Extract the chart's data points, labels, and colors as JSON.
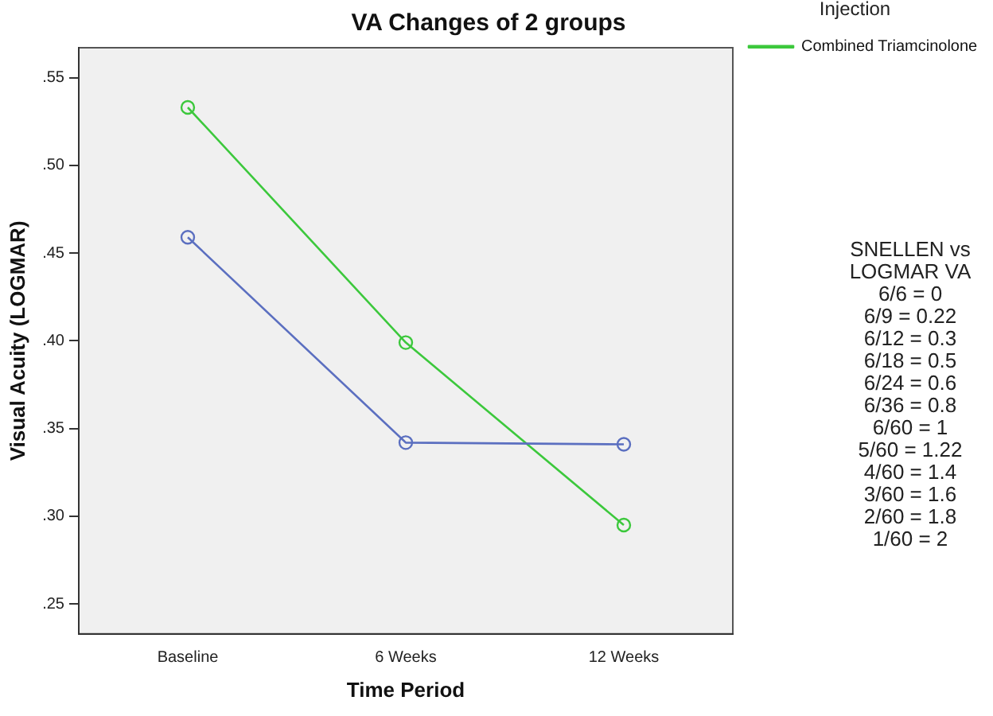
{
  "chart_data": {
    "type": "line",
    "title": "VA Changes of 2 groups",
    "xlabel": "Time Period",
    "ylabel": "Visual Acuity (LOGMAR)",
    "legend_title": "Injection",
    "categories": [
      "Baseline",
      "6 Weeks",
      "12 Weeks"
    ],
    "series": [
      {
        "color": "#5b6fc0",
        "values": [
          0.459,
          0.342,
          0.341
        ]
      },
      {
        "name": "Combined Triamcinolone",
        "color": "#3cc83c",
        "values": [
          0.533,
          0.399,
          0.295
        ]
      }
    ],
    "ylim": [
      0.233,
      0.567
    ],
    "yticks": [
      {
        "value": 0.25,
        "label": ".25"
      },
      {
        "value": 0.3,
        "label": ".30"
      },
      {
        "value": 0.35,
        "label": ".35"
      },
      {
        "value": 0.4,
        "label": ".40"
      },
      {
        "value": 0.45,
        "label": ".45"
      },
      {
        "value": 0.5,
        "label": ".50"
      },
      {
        "value": 0.55,
        "label": ".55"
      }
    ],
    "grid": false,
    "legend": "right",
    "marker": "circle",
    "line_style": "solid",
    "annotations": [
      "SNELLEN vs LOGMAR VA",
      "6/6 = 0",
      "6/9 = 0.22",
      "6/12 = 0.3",
      "6/18 = 0.5",
      "6/24 = 0.6",
      "6/36 = 0.8",
      "6/60 = 1",
      "5/60 = 1.22",
      "4/60 = 1.4",
      "3/60 = 1.6",
      "2/60 = 1.8",
      "1/60 = 2"
    ]
  }
}
